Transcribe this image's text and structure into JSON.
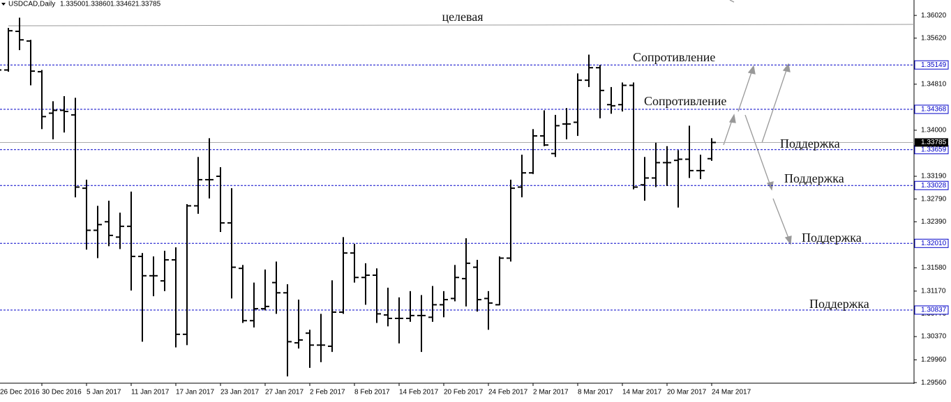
{
  "chart_data": {
    "type": "ohlc",
    "title": "USDCAD,Daily",
    "header_values": [
      "1.33500",
      "1.33860",
      "1.33462",
      "1.33785"
    ],
    "categories": [
      "26 Dec 2016",
      null,
      null,
      null,
      "30 Dec 2016",
      null,
      null,
      null,
      "5 Jan 2017",
      null,
      null,
      null,
      "11 Jan 2017",
      null,
      null,
      null,
      "17 Jan 2017",
      null,
      null,
      null,
      "23 Jan 2017",
      null,
      null,
      null,
      "27 Jan 2017",
      null,
      null,
      null,
      "2 Feb 2017",
      null,
      null,
      null,
      "8 Feb 2017",
      null,
      null,
      null,
      "14 Feb 2017",
      null,
      null,
      null,
      "20 Feb 2017",
      null,
      null,
      null,
      "24 Feb 2017",
      null,
      null,
      null,
      "2 Mar 2017",
      null,
      null,
      null,
      "8 Mar 2017",
      null,
      null,
      null,
      "14 Mar 2017",
      null,
      null,
      null,
      "20 Mar 2017",
      null,
      null,
      null,
      "24 Mar 2017"
    ],
    "open": [
      null,
      1.3506,
      1.3574,
      1.3557,
      1.3503,
      1.343,
      1.3435,
      1.3427,
      1.3298,
      1.3224,
      1.3239,
      1.3212,
      1.3231,
      1.3178,
      1.3144,
      1.3135,
      1.3172,
      1.3041,
      1.3267,
      1.3313,
      1.3319,
      1.3237,
      1.3157,
      1.3065,
      1.3086,
      1.3132,
      1.3114,
      1.3026,
      1.3043,
      1.3022,
      1.302,
      1.308,
      1.3184,
      1.3141,
      1.3145,
      1.3075,
      1.3069,
      1.3069,
      1.3074,
      1.3071,
      1.3093,
      1.3104,
      1.3139,
      1.3159,
      1.3104,
      1.3093,
      1.3175,
      1.33,
      1.3325,
      1.339,
      1.3359,
      1.3411,
      1.3414,
      1.3488,
      1.351,
      1.3445,
      1.3445,
      1.3479,
      1.3304,
      1.3316,
      1.3343,
      1.3347,
      1.3349,
      1.3329,
      1.335
    ],
    "high": [
      null,
      1.358,
      1.3598,
      1.3559,
      1.3506,
      1.3451,
      1.346,
      1.3457,
      1.3313,
      1.3267,
      1.3276,
      1.3255,
      1.3292,
      1.3184,
      1.3178,
      1.3188,
      1.3194,
      1.327,
      1.3353,
      1.3386,
      1.3335,
      1.3298,
      1.3163,
      1.3132,
      1.3155,
      1.3169,
      1.3129,
      1.3102,
      1.3049,
      1.3077,
      1.3136,
      1.3212,
      1.32,
      1.3166,
      1.3157,
      1.3123,
      1.3106,
      1.3117,
      1.311,
      1.3126,
      1.3117,
      1.3163,
      1.321,
      1.3172,
      1.3117,
      1.3178,
      1.3313,
      1.3357,
      1.3402,
      1.3435,
      1.3427,
      1.3439,
      1.35,
      1.3533,
      1.3515,
      1.3476,
      1.3484,
      1.3484,
      1.3353,
      1.3378,
      1.3372,
      1.3365,
      1.3408,
      1.3357,
      1.3386
    ],
    "low": [
      null,
      1.3503,
      1.3541,
      1.3479,
      1.3402,
      1.3384,
      1.3396,
      1.3282,
      1.319,
      1.3175,
      1.3196,
      1.3191,
      1.3118,
      1.3028,
      1.3108,
      1.3117,
      1.3018,
      1.3022,
      1.3253,
      1.328,
      1.3221,
      1.3104,
      1.3061,
      1.3053,
      1.3083,
      1.3077,
      1.2967,
      1.3016,
      1.2982,
      1.2992,
      1.301,
      1.3077,
      1.3132,
      1.3093,
      1.3061,
      1.3055,
      1.3025,
      1.3063,
      1.301,
      1.3063,
      1.3071,
      1.3099,
      1.309,
      1.3081,
      1.3049,
      1.3092,
      1.3169,
      1.3282,
      1.3323,
      1.3372,
      1.3353,
      1.3384,
      1.339,
      1.3476,
      1.3421,
      1.3429,
      1.3433,
      1.3296,
      1.3276,
      1.33,
      1.3302,
      1.3264,
      1.3316,
      1.3314,
      1.33462
    ],
    "close": [
      1.3506,
      1.3575,
      1.3559,
      1.3504,
      1.3424,
      1.3435,
      1.3433,
      1.33,
      1.3224,
      1.3234,
      1.3215,
      1.3231,
      1.3178,
      1.3144,
      1.3144,
      1.3172,
      1.3041,
      1.3267,
      1.3313,
      1.3313,
      1.3237,
      1.3159,
      1.3065,
      1.3086,
      1.309,
      1.3114,
      1.3028,
      1.3031,
      1.3022,
      1.3022,
      1.308,
      1.3184,
      1.3141,
      1.3145,
      1.3077,
      1.3069,
      1.3069,
      1.3074,
      1.3074,
      1.3093,
      1.3102,
      1.3141,
      1.3166,
      1.3102,
      1.3096,
      1.3175,
      1.3298,
      1.3325,
      1.339,
      1.3374,
      1.3408,
      1.3411,
      1.3488,
      1.351,
      1.347,
      1.3443,
      1.3479,
      1.33,
      1.3316,
      1.3343,
      1.3343,
      1.3349,
      1.3329,
      1.3329,
      1.33785
    ],
    "color": "#000000",
    "ylim": [
      1.2955,
      1.3623
    ],
    "yticks": [
      {
        "value": 1.3602,
        "label": "1.36020"
      },
      {
        "value": 1.3562,
        "label": "1.35620"
      },
      {
        "value": 1.3481,
        "label": "1.34810"
      },
      {
        "value": 1.34,
        "label": "1.34000"
      },
      {
        "value": 1.3319,
        "label": "1.33190"
      },
      {
        "value": 1.3279,
        "label": "1.32790"
      },
      {
        "value": 1.3239,
        "label": "1.32390"
      },
      {
        "value": 1.3158,
        "label": "1.31580"
      },
      {
        "value": 1.3117,
        "label": "1.31170"
      },
      {
        "value": 1.3077,
        "label": "1.30770"
      },
      {
        "value": 1.3037,
        "label": "1.30370"
      },
      {
        "value": 1.2996,
        "label": "1.29960"
      },
      {
        "value": 1.2956,
        "label": "1.29560"
      }
    ],
    "levels": [
      {
        "value": 1.35149,
        "label": "1.35149"
      },
      {
        "value": 1.34368,
        "label": "1.34368"
      },
      {
        "value": 1.33659,
        "label": "1.33659"
      },
      {
        "value": 1.33028,
        "label": "1.33028"
      },
      {
        "value": 1.3201,
        "label": "1.32010"
      },
      {
        "value": 1.30837,
        "label": "1.30837"
      }
    ],
    "level_color": "#0000c8",
    "current": {
      "value": 1.33785,
      "label": "1.33785"
    },
    "target": {
      "value": 1.3585,
      "label": "целевая"
    },
    "annotations": [
      "Сопротивление",
      "Сопротивление",
      "Поддержка",
      "Поддержка",
      "Поддержка",
      "Поддержка"
    ]
  }
}
